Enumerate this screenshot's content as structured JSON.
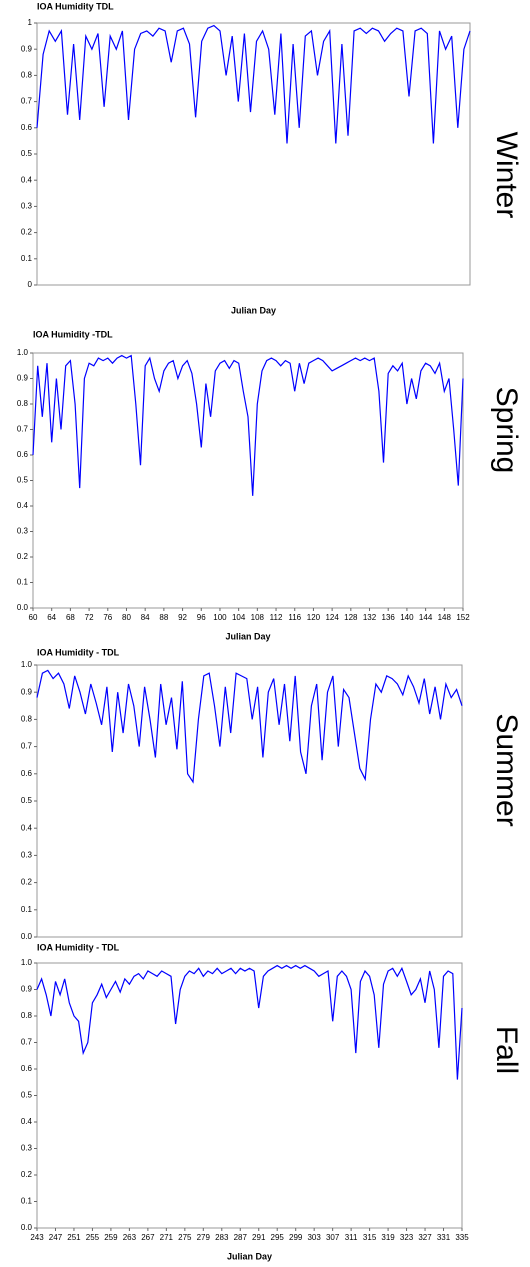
{
  "chart_data": [
    {
      "type": "line",
      "title": "IOA Humidity TDL",
      "x_label": "Julian Day",
      "annotation": "Winter",
      "ylim": [
        0,
        1
      ],
      "yticks": [
        0,
        0.1,
        0.2,
        0.3,
        0.4,
        0.5,
        0.6,
        0.7,
        0.8,
        0.9,
        1
      ],
      "color": "#0000ff",
      "values": [
        0.6,
        0.88,
        0.97,
        0.93,
        0.97,
        0.65,
        0.92,
        0.63,
        0.95,
        0.9,
        0.96,
        0.68,
        0.95,
        0.9,
        0.97,
        0.63,
        0.9,
        0.96,
        0.97,
        0.95,
        0.98,
        0.97,
        0.85,
        0.97,
        0.98,
        0.92,
        0.64,
        0.93,
        0.98,
        0.99,
        0.97,
        0.8,
        0.95,
        0.7,
        0.96,
        0.66,
        0.93,
        0.97,
        0.9,
        0.65,
        0.96,
        0.54,
        0.92,
        0.6,
        0.95,
        0.97,
        0.8,
        0.93,
        0.97,
        0.54,
        0.92,
        0.57,
        0.97,
        0.98,
        0.96,
        0.98,
        0.97,
        0.93,
        0.96,
        0.98,
        0.97,
        0.72,
        0.97,
        0.98,
        0.96,
        0.54,
        0.97,
        0.9,
        0.95,
        0.6,
        0.9,
        0.97
      ]
    },
    {
      "type": "line",
      "title": "IOA Humidity -TDL",
      "x_label": "Julian Day",
      "annotation": "Spring",
      "ylim": [
        0,
        1
      ],
      "yticks": [
        {
          "value": 0,
          "label": "0.0"
        },
        0.1,
        0.2,
        0.3,
        0.4,
        0.5,
        0.6,
        0.7,
        0.8,
        0.9,
        {
          "value": 1,
          "label": "1.0"
        }
      ],
      "xlim": [
        60,
        152
      ],
      "xticks": [
        60,
        64,
        68,
        72,
        76,
        80,
        84,
        88,
        92,
        96,
        100,
        104,
        108,
        112,
        116,
        120,
        124,
        128,
        132,
        136,
        140,
        144,
        148,
        152
      ],
      "color": "#0000ff",
      "x": [
        60,
        61,
        62,
        63,
        64,
        65,
        66,
        67,
        68,
        69,
        70,
        71,
        72,
        73,
        74,
        75,
        76,
        77,
        78,
        79,
        80,
        81,
        82,
        83,
        84,
        85,
        86,
        87,
        88,
        89,
        90,
        91,
        92,
        93,
        94,
        95,
        96,
        97,
        98,
        99,
        100,
        101,
        102,
        103,
        104,
        105,
        106,
        107,
        108,
        109,
        110,
        111,
        112,
        113,
        114,
        115,
        116,
        117,
        118,
        119,
        120,
        121,
        122,
        123,
        124,
        125,
        126,
        127,
        128,
        129,
        130,
        131,
        132,
        133,
        134,
        135,
        136,
        137,
        138,
        139,
        140,
        141,
        142,
        143,
        144,
        145,
        146,
        147,
        148,
        149,
        150,
        151,
        152
      ],
      "values": [
        0.6,
        0.95,
        0.75,
        0.96,
        0.65,
        0.9,
        0.7,
        0.95,
        0.97,
        0.8,
        0.47,
        0.9,
        0.96,
        0.95,
        0.98,
        0.97,
        0.98,
        0.96,
        0.98,
        0.99,
        0.98,
        0.99,
        0.8,
        0.56,
        0.95,
        0.98,
        0.9,
        0.85,
        0.93,
        0.96,
        0.97,
        0.9,
        0.95,
        0.97,
        0.92,
        0.8,
        0.63,
        0.88,
        0.75,
        0.93,
        0.96,
        0.97,
        0.94,
        0.97,
        0.96,
        0.85,
        0.75,
        0.44,
        0.8,
        0.93,
        0.97,
        0.98,
        0.97,
        0.95,
        0.97,
        0.96,
        0.85,
        0.96,
        0.88,
        0.96,
        0.97,
        0.98,
        0.97,
        0.95,
        0.93,
        0.94,
        0.95,
        0.96,
        0.97,
        0.98,
        0.97,
        0.98,
        0.97,
        0.98,
        0.85,
        0.57,
        0.92,
        0.95,
        0.93,
        0.96,
        0.8,
        0.9,
        0.82,
        0.93,
        0.96,
        0.95,
        0.92,
        0.96,
        0.85,
        0.9,
        0.7,
        0.48,
        0.9
      ]
    },
    {
      "type": "line",
      "title": "IOA Humidity - TDL",
      "annotation": "Summer",
      "ylim": [
        0,
        1
      ],
      "yticks": [
        {
          "value": 0,
          "label": "0.0"
        },
        0.1,
        0.2,
        0.3,
        0.4,
        0.5,
        0.6,
        0.7,
        0.8,
        0.9,
        {
          "value": 1,
          "label": "1.0"
        }
      ],
      "color": "#0000ff",
      "values": [
        0.88,
        0.97,
        0.98,
        0.95,
        0.97,
        0.93,
        0.84,
        0.96,
        0.9,
        0.82,
        0.93,
        0.86,
        0.78,
        0.92,
        0.68,
        0.9,
        0.75,
        0.93,
        0.85,
        0.7,
        0.92,
        0.8,
        0.66,
        0.93,
        0.78,
        0.88,
        0.69,
        0.94,
        0.6,
        0.57,
        0.8,
        0.96,
        0.97,
        0.85,
        0.7,
        0.92,
        0.75,
        0.97,
        0.96,
        0.95,
        0.8,
        0.92,
        0.66,
        0.9,
        0.95,
        0.78,
        0.93,
        0.72,
        0.96,
        0.68,
        0.6,
        0.85,
        0.93,
        0.65,
        0.9,
        0.96,
        0.7,
        0.91,
        0.88,
        0.75,
        0.62,
        0.58,
        0.8,
        0.93,
        0.9,
        0.96,
        0.95,
        0.93,
        0.89,
        0.96,
        0.92,
        0.86,
        0.95,
        0.82,
        0.92,
        0.8,
        0.93,
        0.88,
        0.91,
        0.85
      ]
    },
    {
      "type": "line",
      "title": "IOA Humidity - TDL",
      "x_label": "Julian Day",
      "annotation": "Fall",
      "ylim": [
        0,
        1
      ],
      "yticks": [
        {
          "value": 0,
          "label": "0.0"
        },
        0.1,
        0.2,
        0.3,
        0.4,
        0.5,
        0.6,
        0.7,
        0.8,
        0.9,
        {
          "value": 1,
          "label": "1.0"
        }
      ],
      "xlim": [
        243,
        335
      ],
      "xticks": [
        243,
        247,
        251,
        255,
        259,
        263,
        267,
        271,
        275,
        279,
        283,
        287,
        291,
        295,
        299,
        303,
        307,
        311,
        315,
        319,
        323,
        327,
        331,
        335
      ],
      "color": "#0000ff",
      "x": [
        243,
        244,
        245,
        246,
        247,
        248,
        249,
        250,
        251,
        252,
        253,
        254,
        255,
        256,
        257,
        258,
        259,
        260,
        261,
        262,
        263,
        264,
        265,
        266,
        267,
        268,
        269,
        270,
        271,
        272,
        273,
        274,
        275,
        276,
        277,
        278,
        279,
        280,
        281,
        282,
        283,
        284,
        285,
        286,
        287,
        288,
        289,
        290,
        291,
        292,
        293,
        294,
        295,
        296,
        297,
        298,
        299,
        300,
        301,
        302,
        303,
        304,
        305,
        306,
        307,
        308,
        309,
        310,
        311,
        312,
        313,
        314,
        315,
        316,
        317,
        318,
        319,
        320,
        321,
        322,
        323,
        324,
        325,
        326,
        327,
        328,
        329,
        330,
        331,
        332,
        333,
        334,
        335
      ],
      "values": [
        0.9,
        0.94,
        0.88,
        0.8,
        0.93,
        0.88,
        0.94,
        0.85,
        0.8,
        0.78,
        0.66,
        0.7,
        0.85,
        0.88,
        0.92,
        0.87,
        0.9,
        0.93,
        0.89,
        0.94,
        0.92,
        0.95,
        0.96,
        0.94,
        0.97,
        0.96,
        0.95,
        0.97,
        0.96,
        0.95,
        0.77,
        0.9,
        0.95,
        0.97,
        0.96,
        0.98,
        0.95,
        0.97,
        0.96,
        0.98,
        0.96,
        0.97,
        0.98,
        0.96,
        0.98,
        0.97,
        0.98,
        0.97,
        0.83,
        0.95,
        0.97,
        0.98,
        0.99,
        0.98,
        0.99,
        0.98,
        0.99,
        0.98,
        0.99,
        0.98,
        0.97,
        0.95,
        0.96,
        0.97,
        0.78,
        0.95,
        0.97,
        0.95,
        0.9,
        0.66,
        0.93,
        0.97,
        0.95,
        0.88,
        0.68,
        0.92,
        0.97,
        0.98,
        0.95,
        0.98,
        0.93,
        0.88,
        0.9,
        0.94,
        0.85,
        0.97,
        0.9,
        0.68,
        0.95,
        0.97,
        0.96,
        0.56,
        0.83
      ]
    }
  ]
}
